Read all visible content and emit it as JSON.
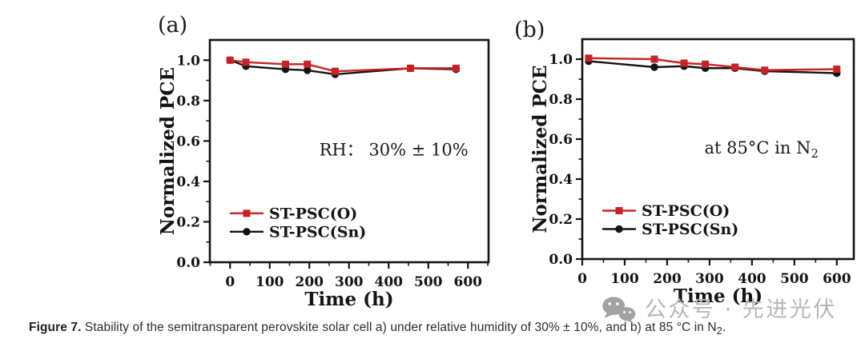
{
  "chart_data": [
    {
      "type": "line",
      "panel_label": "(a)",
      "xlabel": "Time (h)",
      "ylabel": "Normalized PCE",
      "xlim": [
        -51,
        652
      ],
      "ylim": [
        0,
        1.1
      ],
      "xticks": [
        0,
        100,
        200,
        300,
        400,
        500,
        600
      ],
      "yticks": [
        0.0,
        0.2,
        0.4,
        0.6,
        0.8,
        1.0
      ],
      "x_minor_step": 50,
      "y_minor_step": 0.1,
      "grid": false,
      "legend_position": "inside-lower-left",
      "annotation": {
        "segments": [
          {
            "text": "RH： 30% ± 10%"
          }
        ]
      },
      "series": [
        {
          "name": "ST-PSC(O)",
          "color": "#c92224",
          "marker": "square",
          "x": [
            0,
            40,
            140,
            195,
            265,
            455,
            570
          ],
          "y": [
            1.0,
            0.99,
            0.98,
            0.98,
            0.945,
            0.96,
            0.96
          ]
        },
        {
          "name": "ST-PSC(Sn)",
          "color": "#141414",
          "marker": "circle",
          "x": [
            0,
            40,
            140,
            195,
            265,
            455,
            570
          ],
          "y": [
            1.0,
            0.97,
            0.955,
            0.95,
            0.93,
            0.96,
            0.955
          ]
        }
      ]
    },
    {
      "type": "line",
      "panel_label": "(b)",
      "xlabel": "Time (h)",
      "ylabel": "Normalized PCE",
      "xlim": [
        0,
        640
      ],
      "ylim": [
        0,
        1.1
      ],
      "xticks": [
        0,
        100,
        200,
        300,
        400,
        500,
        600
      ],
      "yticks": [
        0.0,
        0.2,
        0.4,
        0.6,
        0.8,
        1.0
      ],
      "x_minor_step": 50,
      "y_minor_step": 0.1,
      "grid": false,
      "legend_position": "inside-lower-left",
      "annotation": {
        "segments": [
          {
            "text": "at 85°C in N"
          },
          {
            "text": "2",
            "sub": true
          }
        ]
      },
      "series": [
        {
          "name": "ST-PSC(O)",
          "color": "#c92224",
          "marker": "square",
          "x": [
            15,
            170,
            240,
            290,
            360,
            430,
            600
          ],
          "y": [
            1.005,
            1.0,
            0.98,
            0.975,
            0.96,
            0.945,
            0.95
          ]
        },
        {
          "name": "ST-PSC(Sn)",
          "color": "#141414",
          "marker": "circle",
          "x": [
            15,
            170,
            240,
            290,
            360,
            430,
            600
          ],
          "y": [
            0.99,
            0.96,
            0.965,
            0.955,
            0.955,
            0.94,
            0.93
          ]
        }
      ]
    }
  ],
  "caption": {
    "label": "Figure 7.",
    "text": "  Stability of the semitransparent perovskite solar cell a) under relative humidity of 30% ± 10%, and b) at 85 °C in N",
    "subscript": "2",
    "suffix": "."
  },
  "watermark": {
    "icon": "wechat-icon",
    "text": "公众号 · 先进光伏",
    "color": "#b7b7b7"
  }
}
